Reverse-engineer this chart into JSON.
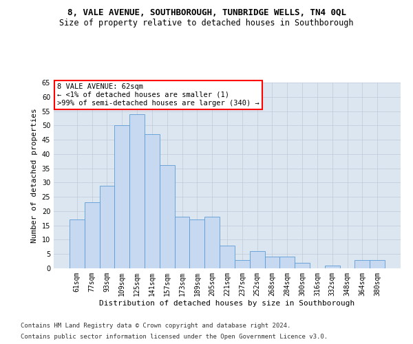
{
  "title": "8, VALE AVENUE, SOUTHBOROUGH, TUNBRIDGE WELLS, TN4 0QL",
  "subtitle": "Size of property relative to detached houses in Southborough",
  "xlabel": "Distribution of detached houses by size in Southborough",
  "ylabel": "Number of detached properties",
  "categories": [
    "61sqm",
    "77sqm",
    "93sqm",
    "109sqm",
    "125sqm",
    "141sqm",
    "157sqm",
    "173sqm",
    "189sqm",
    "205sqm",
    "221sqm",
    "237sqm",
    "252sqm",
    "268sqm",
    "284sqm",
    "300sqm",
    "316sqm",
    "332sqm",
    "348sqm",
    "364sqm",
    "380sqm"
  ],
  "values": [
    17,
    23,
    29,
    50,
    54,
    47,
    36,
    18,
    17,
    18,
    8,
    3,
    6,
    4,
    4,
    2,
    0,
    1,
    0,
    3,
    3
  ],
  "bar_color": "#c6d9f0",
  "bar_edge_color": "#5b9bd5",
  "annotation_line1": "8 VALE AVENUE: 62sqm",
  "annotation_line2": "← <1% of detached houses are smaller (1)",
  "annotation_line3": ">99% of semi-detached houses are larger (340) →",
  "annotation_box_color": "#ffffff",
  "annotation_box_edge_color": "#ff0000",
  "ylim": [
    0,
    65
  ],
  "yticks": [
    0,
    5,
    10,
    15,
    20,
    25,
    30,
    35,
    40,
    45,
    50,
    55,
    60,
    65
  ],
  "footer_line1": "Contains HM Land Registry data © Crown copyright and database right 2024.",
  "footer_line2": "Contains public sector information licensed under the Open Government Licence v3.0.",
  "background_color": "#ffffff",
  "plot_bg_color": "#dce6f1",
  "grid_color": "#c0c8d8",
  "title_fontsize": 9,
  "subtitle_fontsize": 8.5,
  "axis_label_fontsize": 8,
  "tick_fontsize": 7,
  "annotation_fontsize": 7.5,
  "footer_fontsize": 6.5
}
